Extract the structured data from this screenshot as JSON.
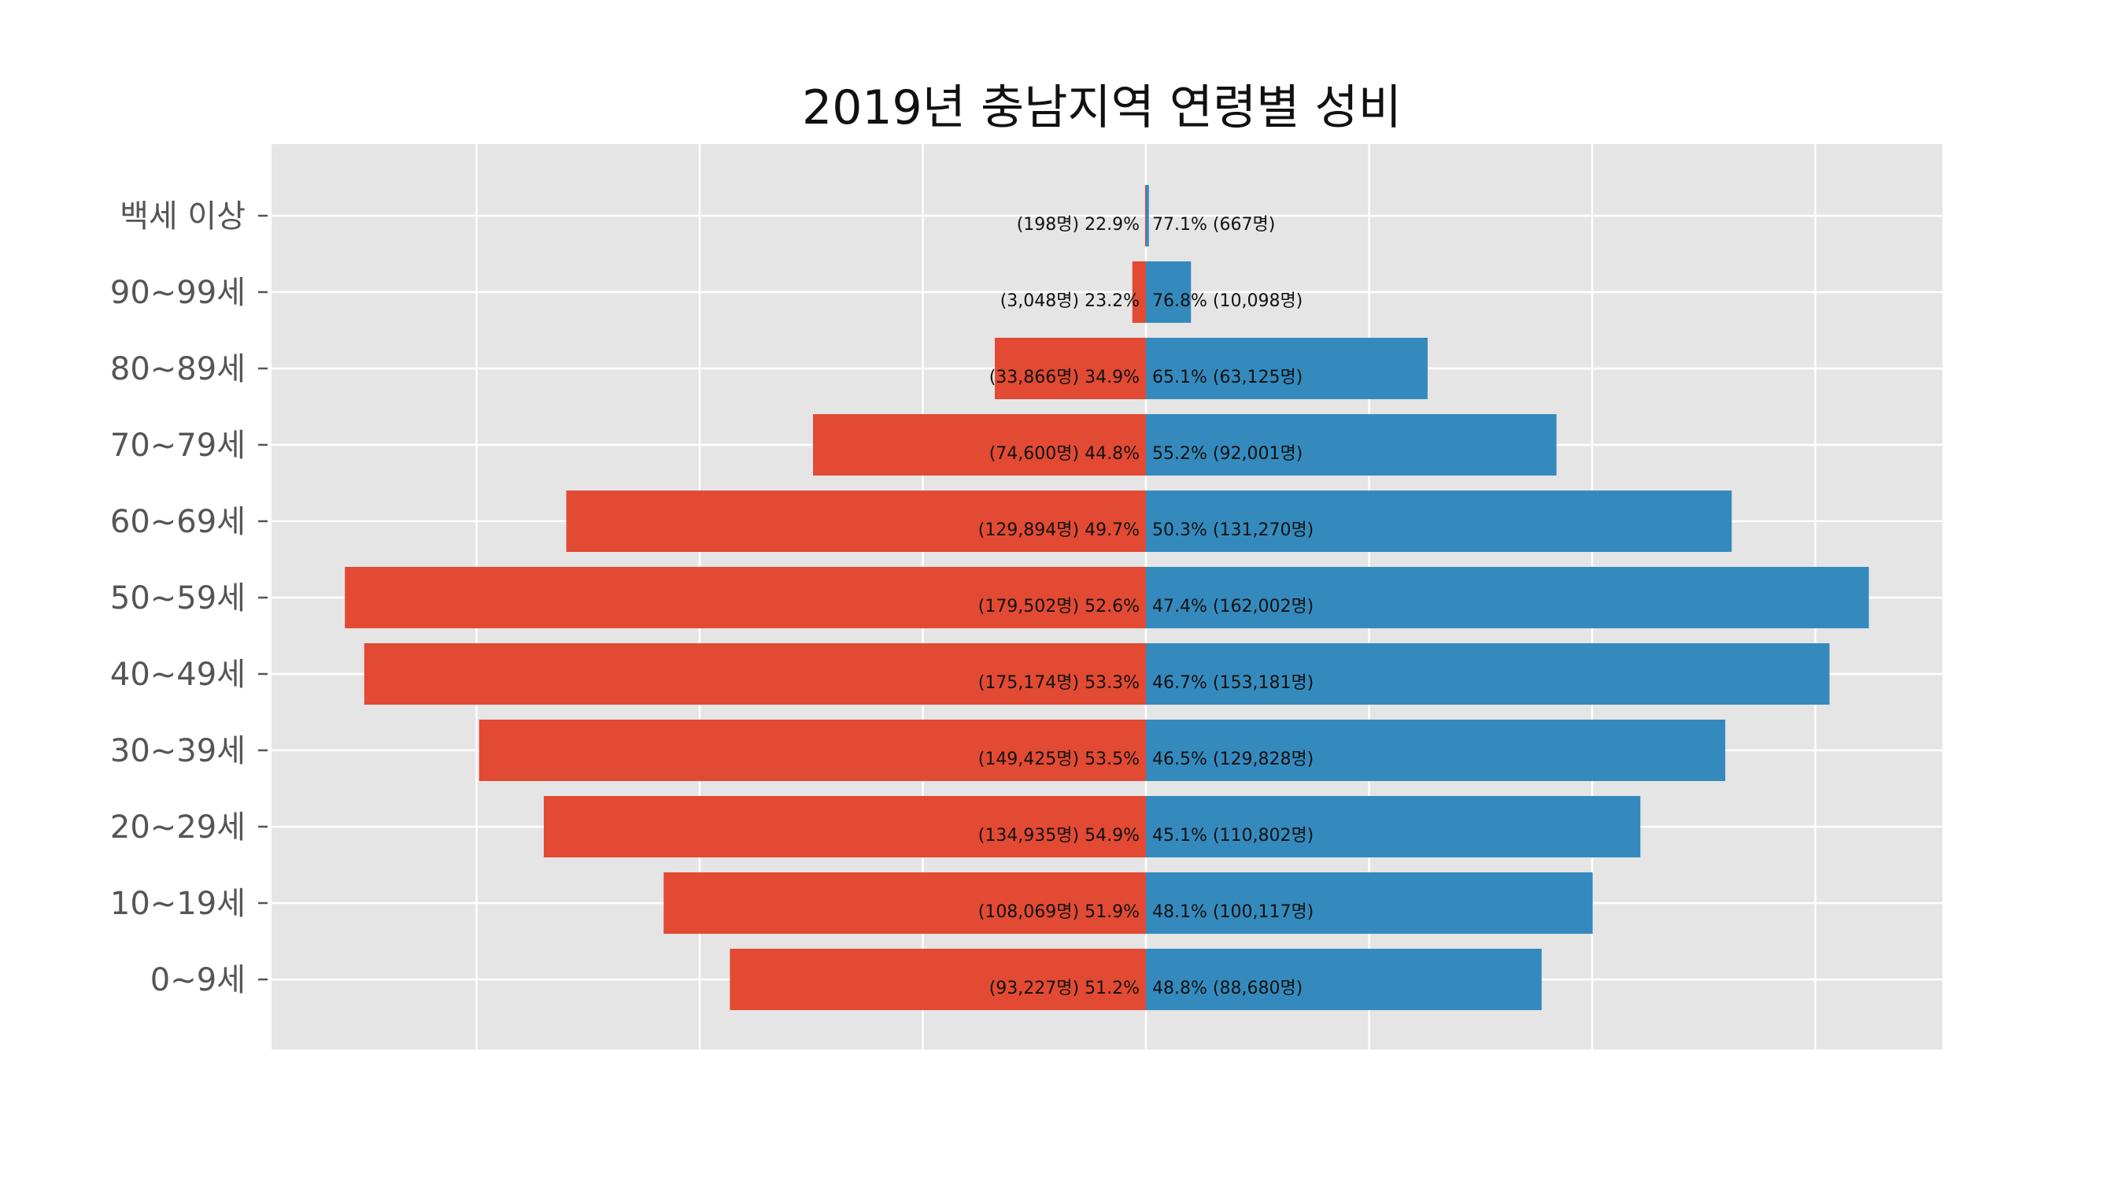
{
  "chart_data": {
    "type": "bar",
    "orientation": "horizontal-population-pyramid",
    "title": "2019년 충남지역 연령별 성비",
    "xlabel": "",
    "ylabel": "",
    "grid": true,
    "categories": [
      "0~9세",
      "10~19세",
      "20~29세",
      "30~39세",
      "40~49세",
      "50~59세",
      "60~69세",
      "70~79세",
      "80~89세",
      "90~99세",
      "백세 이상"
    ],
    "colors": {
      "left": "#E24A33",
      "right": "#348ABD",
      "background": "#E5E5E5",
      "grid": "#FFFFFF"
    },
    "series": [
      {
        "side": "left",
        "values": [
          93227,
          108069,
          134935,
          149425,
          175174,
          179502,
          129894,
          74600,
          33866,
          3048,
          198
        ],
        "labels": [
          "(93,227명) 51.2%",
          "(108,069명) 51.9%",
          "(134,935명) 54.9%",
          "(149,425명) 53.5%",
          "(175,174명) 53.3%",
          "(179,502명) 52.6%",
          "(129,894명) 49.7%",
          "(74,600명) 44.8%",
          "(33,866명) 34.9%",
          "(3,048명) 23.2%",
          "(198명) 22.9%"
        ]
      },
      {
        "side": "right",
        "values": [
          88680,
          100117,
          110802,
          129828,
          153181,
          162002,
          131270,
          92001,
          63125,
          10098,
          667
        ],
        "labels": [
          "48.8% (88,680명)",
          "48.1% (100,117명)",
          "45.1% (110,802명)",
          "46.5% (129,828명)",
          "46.7% (153,181명)",
          "47.4% (162,002명)",
          "50.3% (131,270명)",
          "55.2% (92,001명)",
          "65.1% (63,125명)",
          "76.8% (10,098명)",
          "77.1% (667명)"
        ]
      }
    ],
    "xlim": [
      -200000,
      200000
    ],
    "x_gridlines": [
      -150000,
      -100000,
      -50000,
      0,
      50000,
      100000,
      150000
    ]
  }
}
